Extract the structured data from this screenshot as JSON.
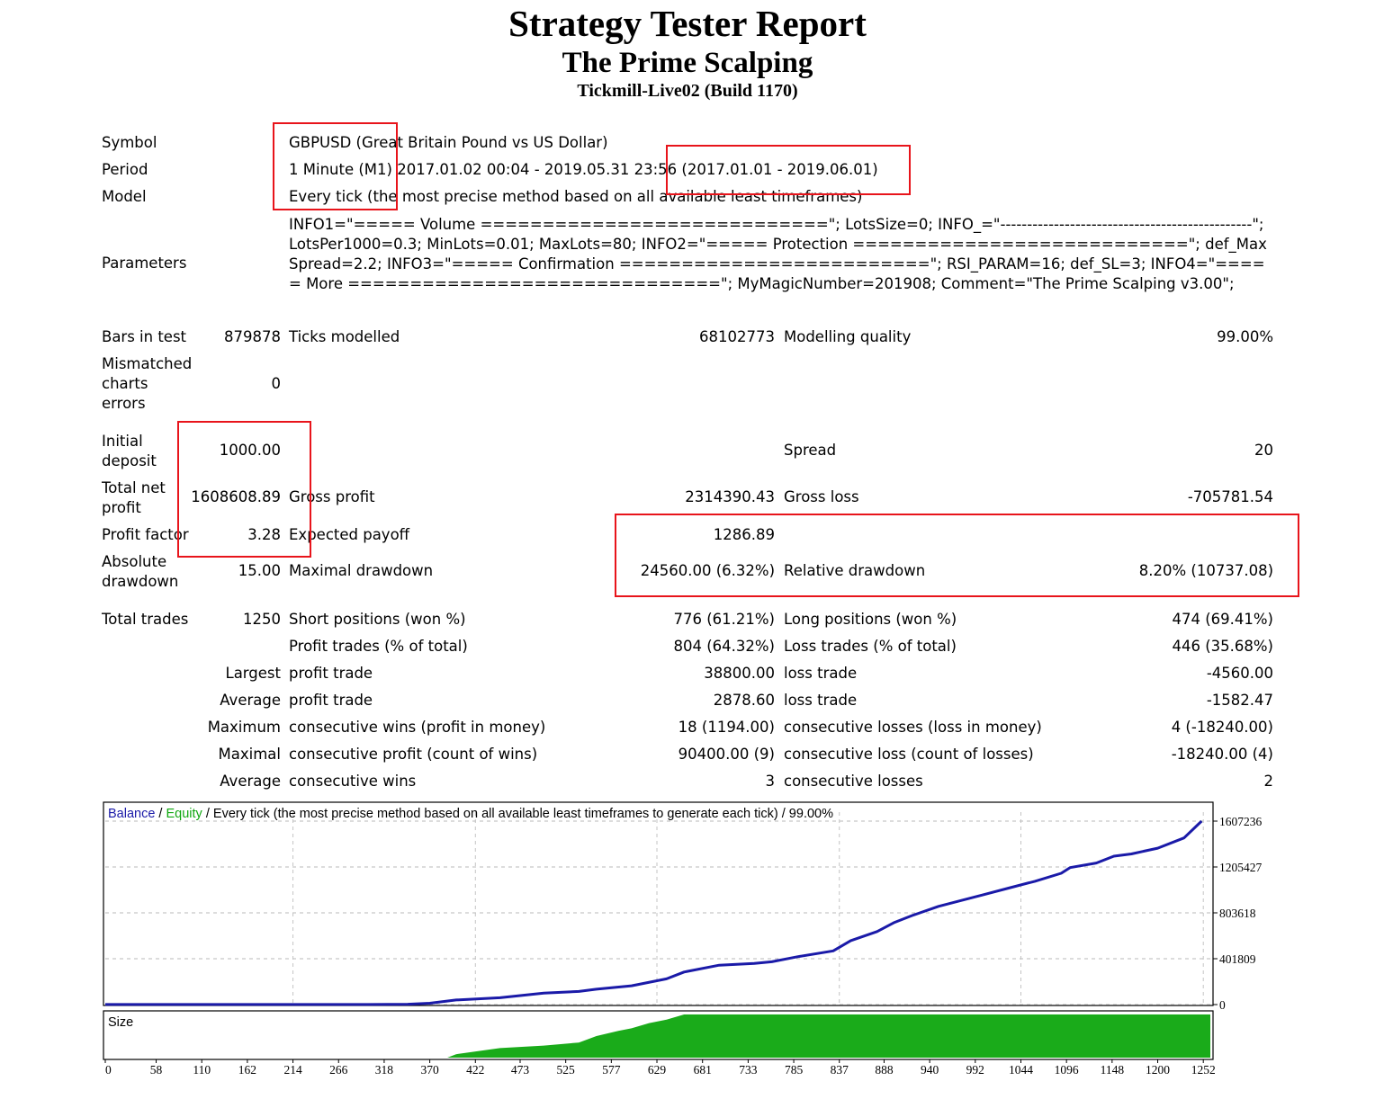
{
  "header": {
    "title": "Strategy Tester Report",
    "ea_name": "The Prime Scalping",
    "server": "Tickmill-Live02 (Build 1170)"
  },
  "summary": {
    "symbol_label": "Symbol",
    "symbol_value": "GBPUSD (Great Britain Pound vs US Dollar)",
    "period_label": "Period",
    "period_value": "1 Minute (M1) 2017.01.02 00:04 - 2019.05.31 23:56 (2017.01.01 - 2019.06.01)",
    "model_label": "Model",
    "model_value": "Every tick (the most precise method based on all available least timeframes)",
    "parameters_label": "Parameters",
    "parameters_value": "INFO1=\"===== Volume ============================\"; LotsSize=0; INFO_=\"-----------------------------------------------\"; LotsPer1000=0.3; MinLots=0.01; MaxLots=80; INFO2=\"===== Protection ===========================\"; def_MaxSpread=2.2; INFO3=\"===== Confirmation =========================\"; RSI_PARAM=16; def_SL=3; INFO4=\"===== More ==============================\"; MyMagicNumber=201908; Comment=\"The Prime Scalping v3.00\";"
  },
  "stats": {
    "bars_label": "Bars in test",
    "bars_value": "879878",
    "ticks_label": "Ticks modelled",
    "ticks_value": "68102773",
    "quality_label": "Modelling quality",
    "quality_value": "99.00%",
    "mismatch_l1": "Mismatched",
    "mismatch_l2": "charts",
    "mismatch_l3": "errors",
    "mismatch_value": "0",
    "deposit_l1": "Initial",
    "deposit_l2": "deposit",
    "deposit_value": "1000.00",
    "spread_label": "Spread",
    "spread_value": "20",
    "netprofit_l1": "Total net",
    "netprofit_l2": "profit",
    "netprofit_value": "1608608.89",
    "grossprofit_label": "Gross profit",
    "grossprofit_value": "2314390.43",
    "grossloss_label": "Gross loss",
    "grossloss_value": "-705781.54",
    "pf_label": "Profit factor",
    "pf_value": "3.28",
    "payoff_label": "Expected payoff",
    "payoff_value": "1286.89",
    "absdd_l1": "Absolute",
    "absdd_l2": "drawdown",
    "absdd_value": "15.00",
    "maxdd_label": "Maximal drawdown",
    "maxdd_value": "24560.00 (6.32%)",
    "reldd_label": "Relative drawdown",
    "reldd_value": "8.20% (10737.08)"
  },
  "trades": {
    "total_label": "Total trades",
    "total_value": "1250",
    "short_label": "Short positions (won %)",
    "short_value": "776 (61.21%)",
    "long_label": "Long positions (won %)",
    "long_value": "474 (69.41%)",
    "profit_trades_label": "Profit trades (% of total)",
    "profit_trades_value": "804 (64.32%)",
    "loss_trades_label": "Loss trades (% of total)",
    "loss_trades_value": "446 (35.68%)",
    "largest_label": "Largest",
    "largest_profit_label": "profit trade",
    "largest_profit_value": "38800.00",
    "largest_loss_label": "loss trade",
    "largest_loss_value": "-4560.00",
    "average_label": "Average",
    "avg_profit_label": "profit trade",
    "avg_profit_value": "2878.60",
    "avg_loss_label": "loss trade",
    "avg_loss_value": "-1582.47",
    "maximum_label": "Maximum",
    "max_cons_wins_label": "consecutive wins (profit in money)",
    "max_cons_wins_value": "18 (1194.00)",
    "max_cons_losses_label": "consecutive losses (loss in money)",
    "max_cons_losses_value": "4 (-18240.00)",
    "maximal_label": "Maximal",
    "maximal_cons_profit_label": "consecutive profit (count of wins)",
    "maximal_cons_profit_value": "90400.00 (9)",
    "maximal_cons_loss_label": "consecutive loss (count of losses)",
    "maximal_cons_loss_value": "-18240.00 (4)",
    "average2_label": "Average",
    "avg_cons_wins_label": "consecutive wins",
    "avg_cons_wins_value": "3",
    "avg_cons_losses_label": "consecutive losses",
    "avg_cons_losses_value": "2"
  },
  "chart_data": {
    "type": "line",
    "caption_balance": "Balance",
    "caption_sep1": " / ",
    "caption_equity": "Equity",
    "caption_rest": " / Every tick (the most precise method based on all available least timeframes to generate each tick) / 99.00%",
    "balance_color": "#1a1aa8",
    "equity_color": "#11a811",
    "size_color": "#1aab1a",
    "y_ticks": [
      "1607236",
      "1205427",
      "803618",
      "401809",
      "0"
    ],
    "y_tick_values": [
      1607236,
      1205427,
      803618,
      401809,
      0
    ],
    "ylim": [
      0,
      1607236
    ],
    "xlim": [
      0,
      1260
    ],
    "x_ticks": [
      "0",
      "58",
      "110",
      "162",
      "214",
      "266",
      "318",
      "370",
      "422",
      "473",
      "525",
      "577",
      "629",
      "681",
      "733",
      "785",
      "837",
      "888",
      "940",
      "992",
      "1044",
      "1096",
      "1148",
      "1200",
      "1252"
    ],
    "x_tick_values": [
      0,
      58,
      110,
      162,
      214,
      266,
      318,
      370,
      422,
      473,
      525,
      577,
      629,
      681,
      733,
      785,
      837,
      888,
      940,
      992,
      1044,
      1096,
      1148,
      1200,
      1252
    ],
    "series": [
      {
        "name": "Balance",
        "x": [
          0,
          100,
          200,
          300,
          345,
          370,
          400,
          450,
          500,
          540,
          560,
          600,
          640,
          660,
          700,
          740,
          760,
          790,
          830,
          850,
          880,
          900,
          920,
          950,
          990,
          1000,
          1030,
          1060,
          1090,
          1100,
          1130,
          1150,
          1170,
          1200,
          1230,
          1250
        ],
        "y": [
          1000,
          1000,
          1000,
          1000,
          3000,
          12000,
          40000,
          60000,
          100000,
          115000,
          135000,
          165000,
          225000,
          285000,
          345000,
          360000,
          375000,
          420000,
          470000,
          560000,
          640000,
          720000,
          780000,
          860000,
          940000,
          960000,
          1020000,
          1080000,
          1150000,
          1200000,
          1240000,
          1300000,
          1320000,
          1370000,
          1460000,
          1607236
        ]
      }
    ],
    "size_label": "Size",
    "size_series": {
      "name": "Size",
      "x": [
        0,
        390,
        400,
        450,
        500,
        540,
        560,
        585,
        600,
        620,
        640,
        660,
        1260
      ],
      "y": [
        0,
        0,
        0.08,
        0.22,
        0.28,
        0.35,
        0.5,
        0.62,
        0.68,
        0.8,
        0.88,
        1.0,
        1.0
      ]
    }
  }
}
